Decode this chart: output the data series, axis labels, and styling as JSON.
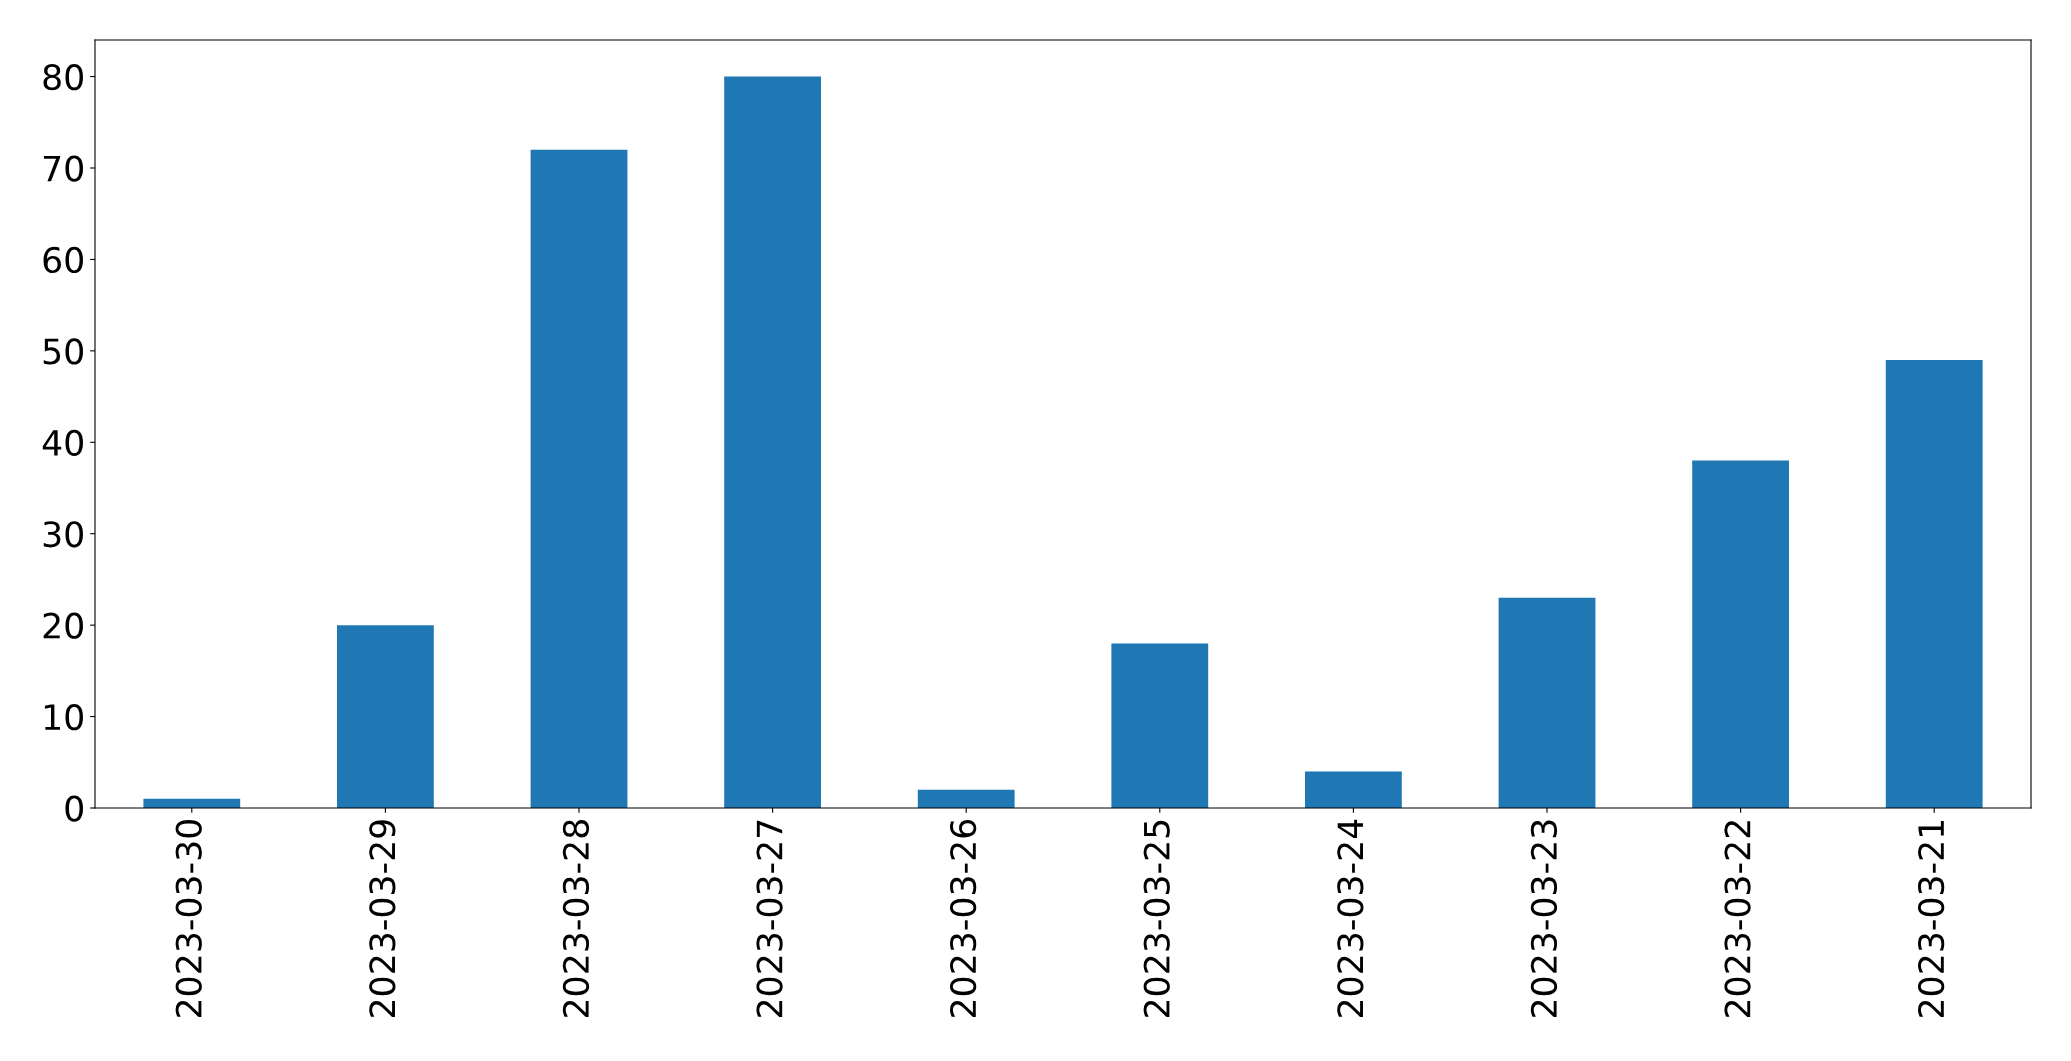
{
  "chart_data": {
    "type": "bar",
    "categories": [
      "2023-03-30",
      "2023-03-29",
      "2023-03-28",
      "2023-03-27",
      "2023-03-26",
      "2023-03-25",
      "2023-03-24",
      "2023-03-23",
      "2023-03-22",
      "2023-03-21"
    ],
    "values": [
      1,
      20,
      72,
      80,
      2,
      18,
      4,
      23,
      38,
      49
    ],
    "color": "#1f77b4",
    "ylim": [
      0,
      84
    ],
    "yticks": [
      0,
      10,
      20,
      30,
      40,
      50,
      60,
      70,
      80
    ],
    "grid": false
  }
}
